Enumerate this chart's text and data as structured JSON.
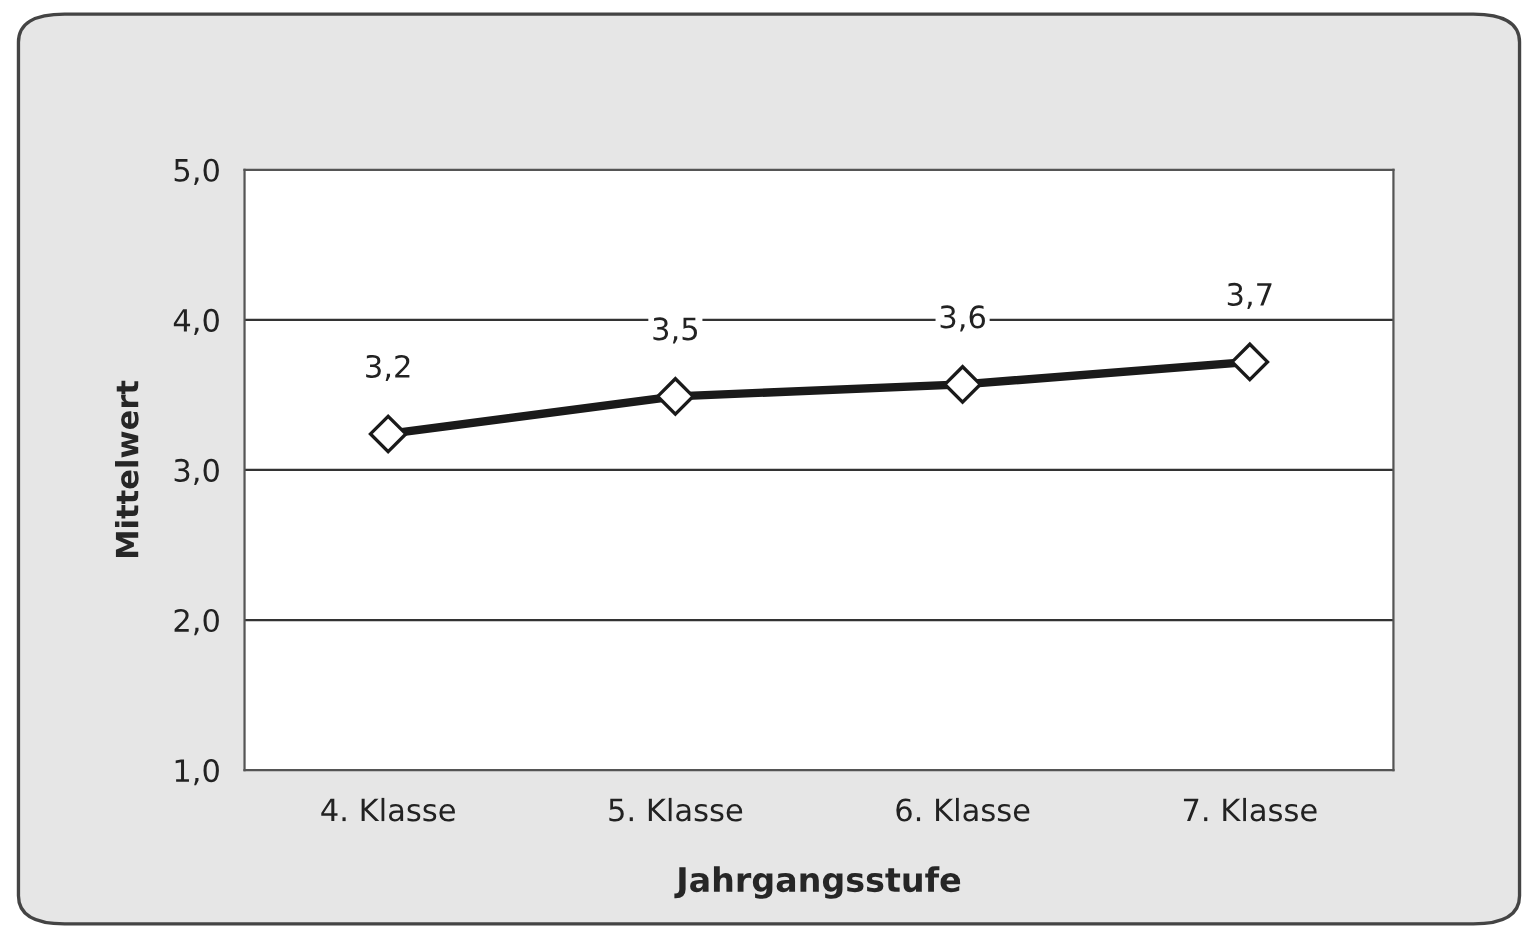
{
  "chart_data": {
    "type": "line",
    "xlabel": "Jahrgangsstufe",
    "ylabel": "Mittelwert",
    "categories": [
      "4. Klasse",
      "5. Klasse",
      "6. Klasse",
      "7. Klasse"
    ],
    "series": [
      {
        "color": "#1a1a1a",
        "values": [
          3.24,
          3.49,
          3.57,
          3.72
        ],
        "value_labels": [
          "3,2",
          "3,5",
          "3,6",
          "3,7"
        ]
      }
    ],
    "ylim": [
      1,
      5
    ],
    "yticks": [
      {
        "value": 1,
        "label": "1,0"
      },
      {
        "value": 2,
        "label": "2,0"
      },
      {
        "value": 3,
        "label": "3,0"
      },
      {
        "value": 4,
        "label": "4,0"
      },
      {
        "value": 5,
        "label": "5,0"
      }
    ],
    "grid": "y",
    "marker": "diamond",
    "line_style": "solid"
  }
}
